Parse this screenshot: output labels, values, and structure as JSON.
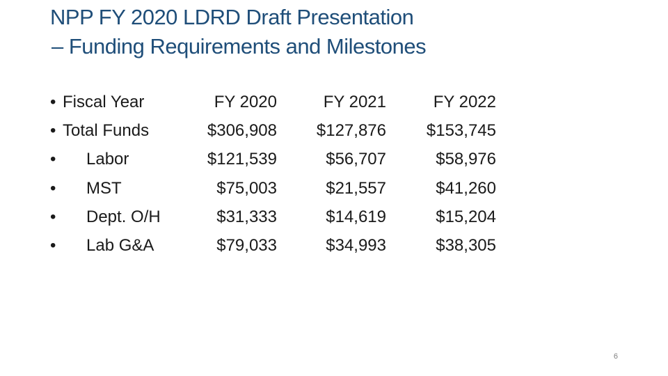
{
  "title": {
    "line1": "NPP FY 2020 LDRD Draft Presentation",
    "line2": "– Funding  Requirements and Milestones"
  },
  "bullet_glyph": "•",
  "table": {
    "header": {
      "label": "Fiscal Year",
      "columns": [
        "FY 2020",
        "FY 2021",
        "FY 2022"
      ]
    },
    "rows": [
      {
        "label": "Total Funds",
        "level": "top",
        "values": [
          "$306,908",
          "$127,876",
          "$153,745"
        ]
      },
      {
        "label": "Labor",
        "level": "sub",
        "values": [
          "$121,539",
          "$56,707",
          "$58,976"
        ]
      },
      {
        "label": "MST",
        "level": "sub",
        "values": [
          "$75,003",
          "$21,557",
          "$41,260"
        ]
      },
      {
        "label": "Dept. O/H",
        "level": "sub",
        "values": [
          "$31,333",
          "$14,619",
          "$15,204"
        ]
      },
      {
        "label": "Lab G&A",
        "level": "sub",
        "values": [
          "$79,033",
          "$34,993",
          "$38,305"
        ]
      }
    ]
  },
  "page_number": "6",
  "colors": {
    "title": "#1f4e79",
    "body_text": "#1a1a1a",
    "page_number": "#7f7f7f"
  }
}
